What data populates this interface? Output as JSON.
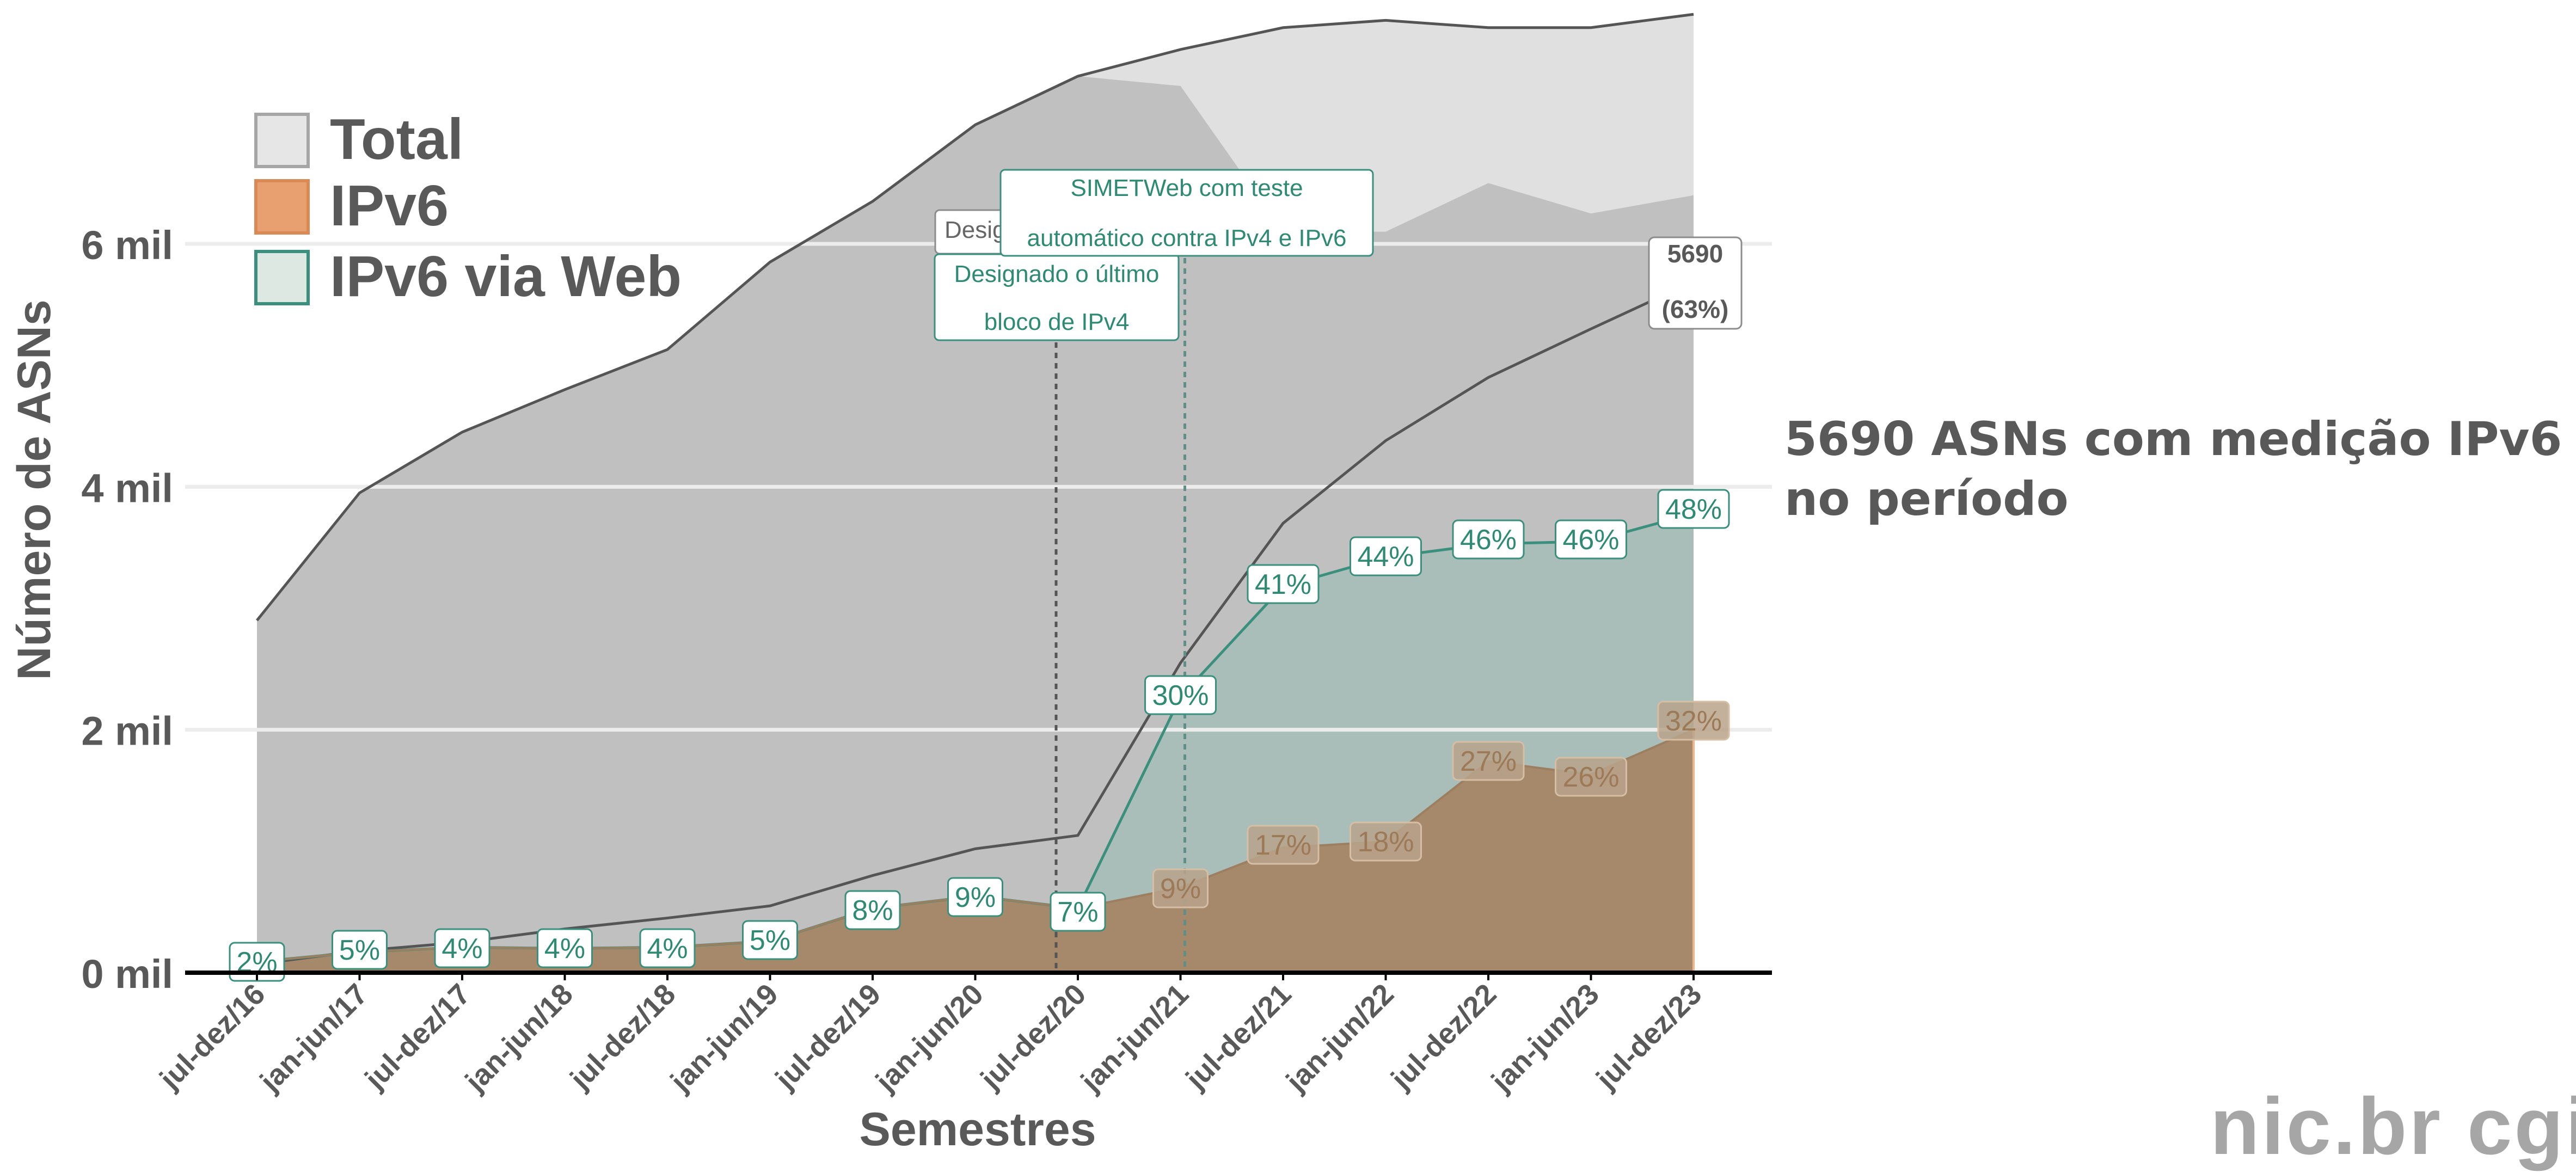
{
  "chart_data": {
    "type": "area",
    "xlabel": "Semestres",
    "ylabel": "Número de ASNs",
    "categories": [
      "jul-dez/16",
      "jan-jun/17",
      "jul-dez/17",
      "jan-jun/18",
      "jul-dez/18",
      "jan-jun/19",
      "jul-dez/19",
      "jan-jun/20",
      "jul-dez/20",
      "jan-jun/21",
      "jul-dez/21",
      "jan-jun/22",
      "jul-dez/22",
      "jan-jun/23",
      "jul-dez/23"
    ],
    "y_unit": "mil",
    "ylim": [
      0,
      8000
    ],
    "yticks": [
      0,
      2000,
      4000,
      6000
    ],
    "ytick_labels": [
      "0 mil",
      "2 mil",
      "4 mil",
      "6 mil"
    ],
    "grid": true,
    "legend_position": "top-left",
    "legend": [
      {
        "name": "Total",
        "color": "#e6e6e6",
        "border": "#a6a6a6"
      },
      {
        "name": "IPv6",
        "color": "#e8a070",
        "border": "#d98a55"
      },
      {
        "name": "IPv6 via Web",
        "color": "#dde8e3",
        "border": "#3a8f7d"
      }
    ],
    "series": [
      {
        "name": "Total",
        "values": [
          2900,
          3950,
          4450,
          4800,
          5130,
          5850,
          6350,
          6980,
          7380,
          7600,
          7780,
          7840,
          7780,
          7780,
          7890
        ]
      },
      {
        "name": "IPv6",
        "values": [
          90,
          170,
          210,
          200,
          210,
          260,
          530,
          630,
          530,
          700,
          1030,
          1080,
          1740,
          1630,
          2000
        ]
      },
      {
        "name": "IPv6 via Web",
        "values": [
          90,
          170,
          210,
          200,
          210,
          260,
          530,
          630,
          530,
          2270,
          3180,
          3420,
          3530,
          3550,
          3780
        ]
      }
    ],
    "measured_line": {
      "values": [
        70,
        180,
        250,
        360,
        450,
        550,
        800,
        1020,
        1130,
        2550,
        3700,
        4380,
        4900,
        5300,
        5690
      ]
    },
    "measured_area_top": [
      null,
      null,
      null,
      null,
      null,
      null,
      null,
      7200,
      7380,
      7300,
      6100,
      6100,
      6500,
      6250,
      6400
    ],
    "ipv6_web_labels": [
      "2%",
      "5%",
      "4%",
      "4%",
      "4%",
      "5%",
      "8%",
      "9%",
      "7%",
      "30%",
      "41%",
      "44%",
      "46%",
      "46%",
      "48%"
    ],
    "ipv6_labels_visible": [
      "",
      "",
      "",
      "",
      "",
      "",
      "",
      "",
      "",
      "9%",
      "17%",
      "18%",
      "27%",
      "26%",
      "32%"
    ],
    "end_label": {
      "value": "5690",
      "pct": "(63%)"
    },
    "annotations": [
      {
        "category": "jul-dez/20",
        "lines": [
          "Designado o último",
          "bloco de IPv4"
        ],
        "hidden_text": "Desig"
      },
      {
        "category": "jan-jun/21",
        "lines": [
          "SIMETWeb com teste",
          "automático contra IPv4 e IPv6"
        ]
      }
    ]
  },
  "side_note": "5690 ASNs com medição IPv6 no período",
  "logo_text": "nic.br  cgi"
}
